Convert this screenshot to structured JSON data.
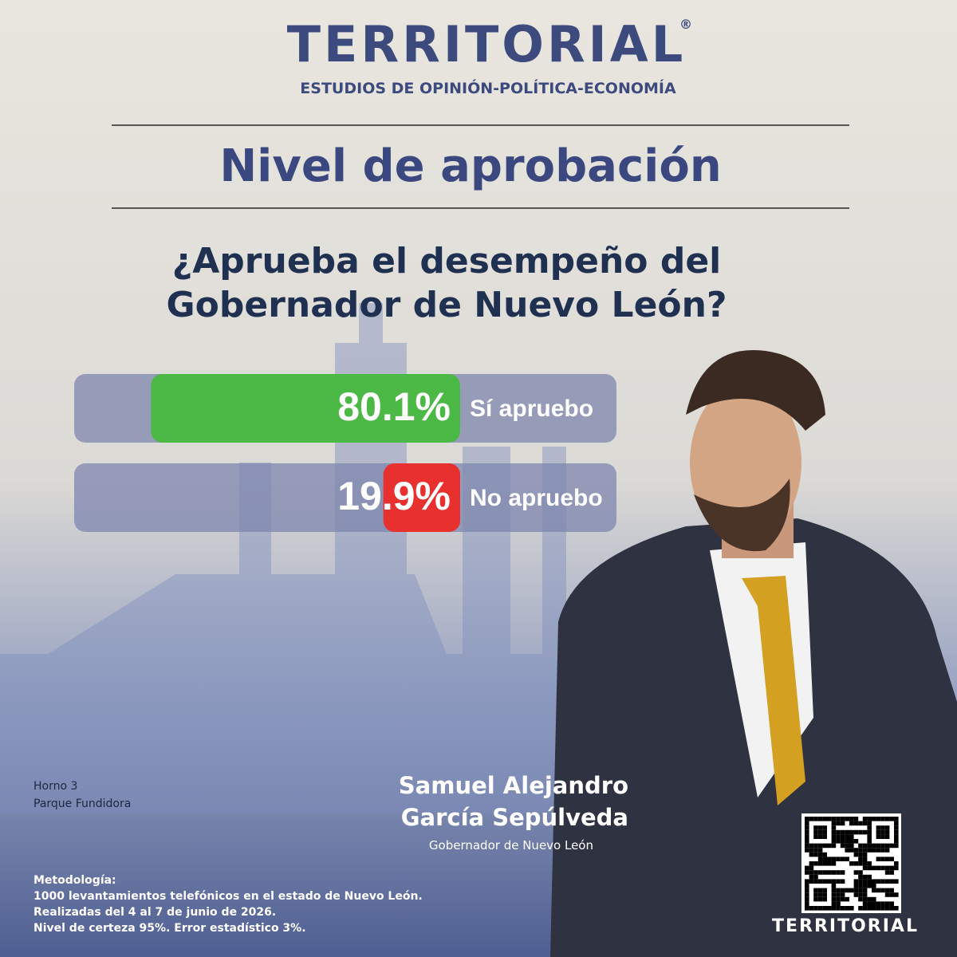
{
  "brand": {
    "name": "TERRITORIAL",
    "mark": "®",
    "tagline": "ESTUDIOS DE OPINIÓN-POLÍTICA-ECONOMÍA"
  },
  "heading": "Nivel de aprobación",
  "question": [
    "¿Aprueba el desempeño del",
    "Gobernador de Nuevo León?"
  ],
  "chart_data": {
    "type": "bar",
    "orientation": "horizontal",
    "categories": [
      "Sí apruebo",
      "No apruebo"
    ],
    "values": [
      80.1,
      19.9
    ],
    "value_labels": [
      "80.1%",
      "19.9%"
    ],
    "colors": [
      "#4cb846",
      "#e8312f"
    ],
    "xlim": [
      0,
      100
    ]
  },
  "photo_caption": [
    "Horno 3",
    "Parque Fundidora"
  ],
  "person": {
    "name": [
      "Samuel Alejandro",
      "García Sepúlveda"
    ],
    "role": "Gobernador de Nuevo León"
  },
  "methodology": {
    "title": "Metodología:",
    "lines": [
      "1000 levantamientos telefónicos  en el estado de Nuevo León.",
      "Realizadas del 4 al 7 de junio de 2026.",
      "Nivel de certeza 95%. Error estadístico 3%."
    ]
  }
}
